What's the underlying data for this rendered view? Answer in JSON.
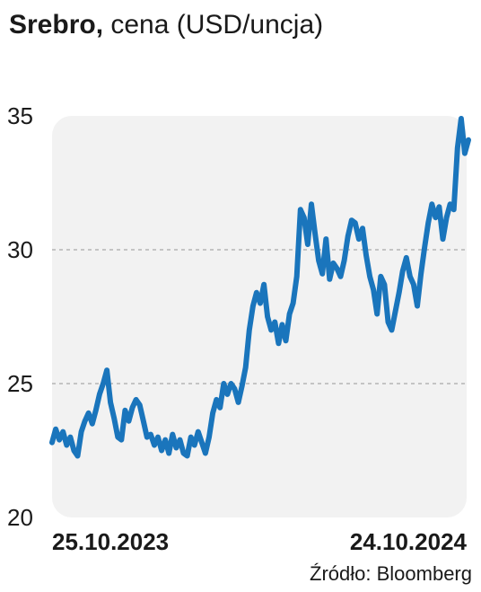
{
  "header": {
    "title_bold": "Srebro,",
    "title_rest": " cena (USD/uncja)"
  },
  "source": "Źródło: Bloomberg",
  "colors": {
    "line": "#1a75bc",
    "plot_background": "#f2f2f2",
    "grid": "#b5b5b5",
    "text": "#1a1a1a"
  },
  "chart_data": {
    "type": "line",
    "title": "Srebro, cena (USD/uncja)",
    "xlabel": "",
    "ylabel": "",
    "ylim": [
      20,
      35
    ],
    "yticks": [
      20,
      25,
      30,
      35
    ],
    "grid": "horizontal dashed at 25 and 30",
    "xtick_labels": [
      "25.10.2023",
      "24.10.2024"
    ],
    "series": [
      {
        "values": [
          22.8,
          23.3,
          22.9,
          23.2,
          22.7,
          23.0,
          22.5,
          22.3,
          23.2,
          23.6,
          23.9,
          23.5,
          24.0,
          24.6,
          25.0,
          25.5,
          24.3,
          23.7,
          23.0,
          22.9,
          24.0,
          23.6,
          24.1,
          24.4,
          24.2,
          23.6,
          23.0,
          23.1,
          22.7,
          23.0,
          22.5,
          22.9,
          22.4,
          23.1,
          22.6,
          22.9,
          22.4,
          22.3,
          23.0,
          22.7,
          23.2,
          22.8,
          22.4,
          23.0,
          23.9,
          24.4,
          24.1,
          25.0,
          24.6,
          25.0,
          24.8,
          24.3,
          24.9,
          25.6,
          27.0,
          27.9,
          28.4,
          28.0,
          28.7,
          27.5,
          27.0,
          27.3,
          26.5,
          27.2,
          26.6,
          27.6,
          28.0,
          29.0,
          31.5,
          31.2,
          30.2,
          31.7,
          30.6,
          29.6,
          29.1,
          30.4,
          28.9,
          29.5,
          29.3,
          29.0,
          29.6,
          30.5,
          31.1,
          31.0,
          30.4,
          30.8,
          29.8,
          29.0,
          28.5,
          27.6,
          29.0,
          28.7,
          27.3,
          27.0,
          27.7,
          28.4,
          29.2,
          29.7,
          29.0,
          28.7,
          27.9,
          29.1,
          30.1,
          31.0,
          31.7,
          31.2,
          31.6,
          30.4,
          31.2,
          31.7,
          31.5,
          33.8,
          34.9,
          33.6,
          34.1
        ]
      }
    ]
  }
}
